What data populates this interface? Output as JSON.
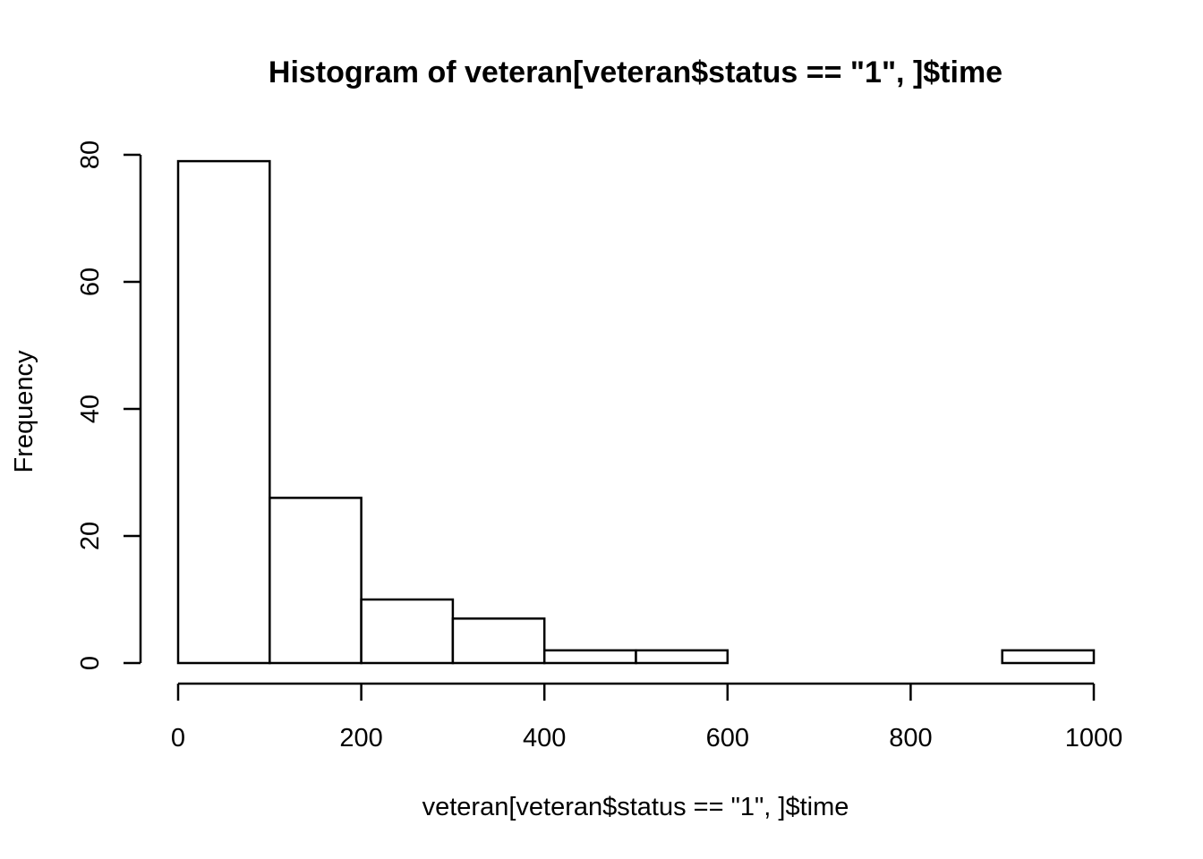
{
  "chart_data": {
    "type": "bar",
    "title": "Histogram of veteran[veteran$status == \"1\", ]$time",
    "xlabel": "veteran[veteran$status == \"1\", ]$time",
    "ylabel": "Frequency",
    "bins": [
      {
        "from": 0,
        "to": 100,
        "count": 79
      },
      {
        "from": 100,
        "to": 200,
        "count": 26
      },
      {
        "from": 200,
        "to": 300,
        "count": 10
      },
      {
        "from": 300,
        "to": 400,
        "count": 7
      },
      {
        "from": 400,
        "to": 500,
        "count": 2
      },
      {
        "from": 500,
        "to": 600,
        "count": 2
      },
      {
        "from": 600,
        "to": 700,
        "count": 0
      },
      {
        "from": 700,
        "to": 800,
        "count": 0
      },
      {
        "from": 800,
        "to": 900,
        "count": 0
      },
      {
        "from": 900,
        "to": 1000,
        "count": 2
      }
    ],
    "xlim": [
      0,
      1000
    ],
    "ylim": [
      0,
      80
    ],
    "xticks": [
      0,
      200,
      400,
      600,
      800,
      1000
    ],
    "yticks": [
      0,
      20,
      40,
      60,
      80
    ],
    "grid": false,
    "colors": {
      "bar_fill": "#ffffff",
      "bar_stroke": "#000000",
      "background": "#ffffff"
    }
  }
}
